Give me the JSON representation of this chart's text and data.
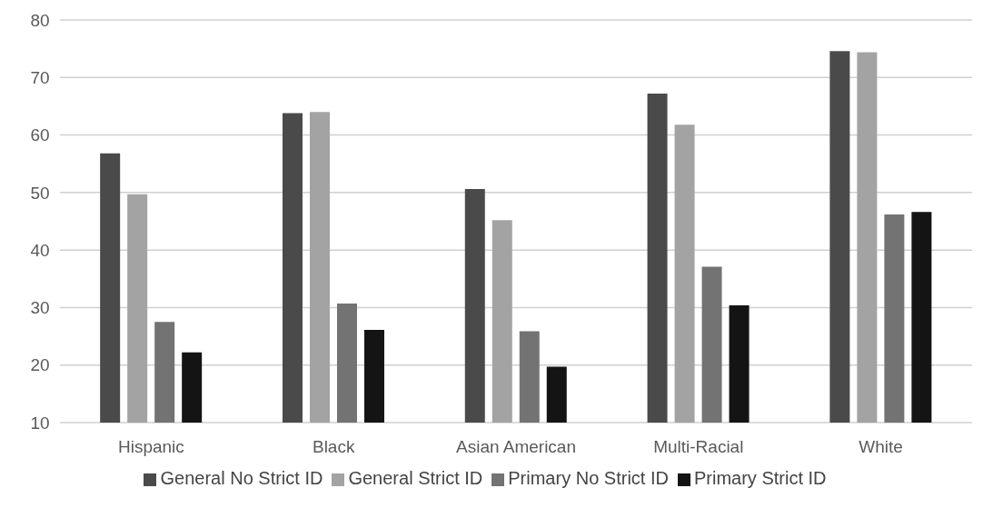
{
  "chart_data": {
    "type": "bar",
    "categories": [
      "Hispanic",
      "Black",
      "Asian American",
      "Multi-Racial",
      "White"
    ],
    "series": [
      {
        "name": "General No Strict ID",
        "color": "#4a4a4a",
        "values": [
          56.8,
          63.8,
          50.6,
          67.2,
          74.6
        ]
      },
      {
        "name": "General Strict ID",
        "color": "#a3a3a3",
        "values": [
          49.7,
          64.0,
          45.2,
          61.8,
          74.4
        ]
      },
      {
        "name": "Primary No Strict ID",
        "color": "#737373",
        "values": [
          27.5,
          30.7,
          25.9,
          37.1,
          46.2
        ]
      },
      {
        "name": "Primary Strict ID",
        "color": "#141414",
        "values": [
          22.2,
          26.1,
          19.7,
          30.4,
          46.6
        ]
      }
    ],
    "ylim": [
      10,
      80
    ],
    "yticks": [
      10,
      20,
      30,
      40,
      50,
      60,
      70,
      80
    ],
    "grid": "y",
    "legend": "bottom"
  }
}
